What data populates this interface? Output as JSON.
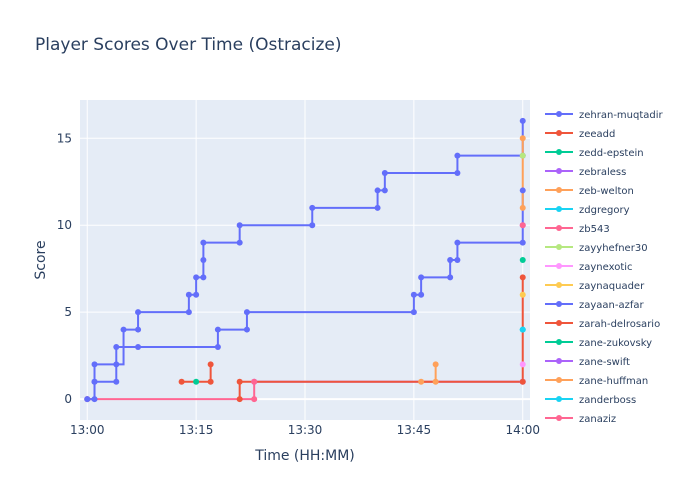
{
  "chart_data": {
    "type": "line",
    "title": "Player Scores Over Time (Ostracize)",
    "xlabel": "Time (HH:MM)",
    "ylabel": "Score",
    "x_ticks": [
      "13:00",
      "13:15",
      "13:30",
      "13:45",
      "14:00"
    ],
    "y_ticks": [
      "0",
      "5",
      "10",
      "15"
    ],
    "xlim": [
      "12:59",
      "14:01"
    ],
    "ylim": [
      -1.2,
      17.2
    ],
    "line_shape": "step",
    "grid": true,
    "legend_position": "right",
    "series": [
      {
        "name": "zehran-muqtadir",
        "color": "#636efa",
        "points": [
          [
            "13:00",
            0
          ],
          [
            "13:01",
            1
          ],
          [
            "13:01",
            2
          ],
          [
            "13:04",
            2
          ],
          [
            "13:05",
            4
          ],
          [
            "13:07",
            4
          ],
          [
            "13:07",
            5
          ],
          [
            "13:14",
            5
          ],
          [
            "13:14",
            6
          ],
          [
            "13:15",
            6
          ],
          [
            "13:15",
            7
          ],
          [
            "13:16",
            7
          ],
          [
            "13:16",
            8
          ],
          [
            "13:16",
            9
          ],
          [
            "13:21",
            9
          ],
          [
            "13:21",
            10
          ],
          [
            "13:31",
            10
          ],
          [
            "13:31",
            11
          ],
          [
            "13:40",
            11
          ],
          [
            "13:40",
            12
          ],
          [
            "13:41",
            12
          ],
          [
            "13:41",
            13
          ],
          [
            "13:51",
            13
          ],
          [
            "13:51",
            14
          ],
          [
            "14:00",
            14
          ],
          [
            "14:00",
            16
          ]
        ]
      },
      {
        "name": "zeeadd",
        "color": "#ef553b",
        "points": [
          [
            "13:13",
            1
          ],
          [
            "13:17",
            1
          ],
          [
            "13:17",
            2
          ]
        ]
      },
      {
        "name": "zedd-epstein",
        "color": "#00cc96",
        "points": [
          [
            "13:15",
            1
          ]
        ]
      },
      {
        "name": "zebraless",
        "color": "#ab63fa",
        "points": [
          [
            "13:23",
            1
          ],
          [
            "14:00",
            1
          ]
        ]
      },
      {
        "name": "zeb-welton",
        "color": "#ffa15a",
        "points": [
          [
            "13:46",
            1
          ],
          [
            "13:48",
            1
          ],
          [
            "13:48",
            2
          ]
        ]
      },
      {
        "name": "zdgregory",
        "color": "#19d3f3",
        "points": [
          [
            "14:00",
            4
          ]
        ]
      },
      {
        "name": "zb543",
        "color": "#ff6692",
        "points": [
          [
            "13:00",
            0
          ],
          [
            "13:23",
            0
          ],
          [
            "13:23",
            1
          ]
        ]
      },
      {
        "name": "zayyhefner30",
        "color": "#b6e880",
        "points": [
          [
            "14:00",
            14
          ]
        ]
      },
      {
        "name": "zaynexotic",
        "color": "#ff97ff",
        "points": [
          [
            "14:00",
            2
          ]
        ]
      },
      {
        "name": "zaynaquader",
        "color": "#fecb52",
        "points": [
          [
            "14:00",
            6
          ]
        ]
      },
      {
        "name": "zayaan-azfar",
        "color": "#636efa",
        "points": [
          [
            "13:00",
            0
          ],
          [
            "13:01",
            0
          ],
          [
            "13:01",
            1
          ],
          [
            "13:04",
            1
          ],
          [
            "13:04",
            3
          ],
          [
            "13:07",
            3
          ],
          [
            "13:18",
            3
          ],
          [
            "13:18",
            4
          ],
          [
            "13:22",
            4
          ],
          [
            "13:22",
            5
          ],
          [
            "13:45",
            5
          ],
          [
            "13:45",
            6
          ],
          [
            "13:46",
            6
          ],
          [
            "13:46",
            7
          ],
          [
            "13:50",
            7
          ],
          [
            "13:50",
            8
          ],
          [
            "13:51",
            8
          ],
          [
            "13:51",
            9
          ],
          [
            "14:00",
            9
          ],
          [
            "14:00",
            12
          ]
        ]
      },
      {
        "name": "zarah-delrosario",
        "color": "#ef553b",
        "points": [
          [
            "13:21",
            0
          ],
          [
            "13:21",
            1
          ],
          [
            "14:00",
            1
          ],
          [
            "14:00",
            7
          ]
        ]
      },
      {
        "name": "zane-zukovsky",
        "color": "#00cc96",
        "points": [
          [
            "14:00",
            8
          ]
        ]
      },
      {
        "name": "zane-swift",
        "color": "#ab63fa",
        "points": [
          [
            "14:00",
            10
          ]
        ]
      },
      {
        "name": "zane-huffman",
        "color": "#ffa15a",
        "points": [
          [
            "14:00",
            11
          ],
          [
            "14:00",
            15
          ]
        ]
      },
      {
        "name": "zanderboss",
        "color": "#19d3f3",
        "points": [
          [
            "14:00",
            4
          ]
        ]
      },
      {
        "name": "zanaziz",
        "color": "#ff6692",
        "points": [
          [
            "14:00",
            10
          ]
        ]
      }
    ]
  }
}
